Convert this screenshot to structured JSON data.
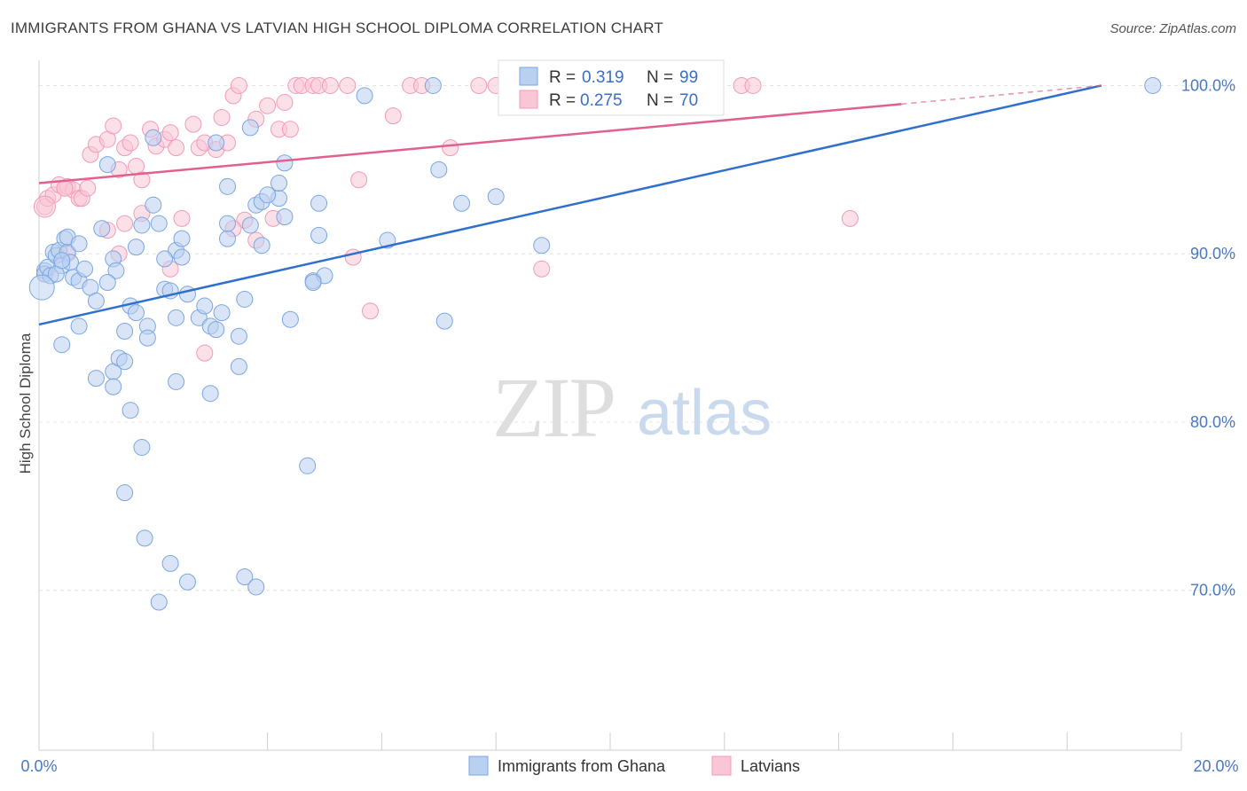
{
  "header": {
    "title": "IMMIGRANTS FROM GHANA VS LATVIAN HIGH SCHOOL DIPLOMA CORRELATION CHART",
    "source": "Source: ZipAtlas.com"
  },
  "watermark": {
    "part1": "ZIP",
    "part2": "atlas"
  },
  "legend": {
    "r_label": "R =",
    "n_label": "N =",
    "rows": [
      {
        "r": "0.319",
        "n": "99"
      },
      {
        "r": "0.275",
        "n": "70"
      }
    ]
  },
  "bottom_legend": {
    "items": [
      "Immigrants from Ghana",
      "Latvians"
    ]
  },
  "chart_data": {
    "type": "scatter",
    "title": "IMMIGRANTS FROM GHANA VS LATVIAN HIGH SCHOOL DIPLOMA CORRELATION CHART",
    "xlabel": "",
    "ylabel": "High School Diploma",
    "xlim": [
      0,
      20
    ],
    "ylim": [
      60.5,
      101.5
    ],
    "x_tick_labels": [
      "0.0%",
      "20.0%"
    ],
    "y_ticks": [
      70,
      80,
      90,
      100
    ],
    "y_tick_labels": [
      "70.0%",
      "80.0%",
      "90.0%",
      "100.0%"
    ],
    "grid": true,
    "legend_position": "top-center",
    "colors": {
      "ghana": "#7aa6e0",
      "latvians": "#f29ab8",
      "ghana_line": "#2f6fce",
      "latvians_line": "#e06090"
    },
    "series": [
      {
        "name": "Immigrants from Ghana",
        "trend": {
          "x": [
            0,
            18.6
          ],
          "y": [
            85.8,
            100.0
          ]
        },
        "points": [
          [
            0.1,
            89.0
          ],
          [
            0.1,
            88.8
          ],
          [
            0.15,
            89.2
          ],
          [
            0.2,
            88.7
          ],
          [
            0.25,
            90.1
          ],
          [
            0.3,
            89.9
          ],
          [
            0.35,
            90.2
          ],
          [
            0.4,
            89.3
          ],
          [
            0.45,
            90.9
          ],
          [
            0.5,
            90.1
          ],
          [
            0.55,
            89.5
          ],
          [
            0.6,
            88.6
          ],
          [
            0.7,
            88.4
          ],
          [
            0.8,
            89.1
          ],
          [
            0.9,
            88.0
          ],
          [
            1.0,
            87.2
          ],
          [
            0.3,
            88.8
          ],
          [
            0.4,
            89.6
          ],
          [
            0.5,
            91.0
          ],
          [
            0.7,
            90.6
          ],
          [
            1.1,
            91.5
          ],
          [
            1.3,
            89.7
          ],
          [
            1.35,
            89.0
          ],
          [
            1.2,
            88.3
          ],
          [
            0.7,
            85.7
          ],
          [
            0.4,
            84.6
          ],
          [
            1.0,
            82.6
          ],
          [
            1.3,
            83.0
          ],
          [
            1.4,
            83.8
          ],
          [
            1.5,
            83.6
          ],
          [
            1.3,
            82.1
          ],
          [
            1.6,
            80.7
          ],
          [
            1.8,
            78.5
          ],
          [
            1.5,
            75.8
          ],
          [
            1.85,
            73.1
          ],
          [
            2.3,
            71.6
          ],
          [
            2.6,
            70.5
          ],
          [
            2.1,
            69.3
          ],
          [
            3.6,
            70.8
          ],
          [
            3.8,
            70.2
          ],
          [
            1.6,
            86.9
          ],
          [
            1.7,
            86.5
          ],
          [
            1.5,
            85.4
          ],
          [
            1.9,
            85.7
          ],
          [
            1.9,
            85.0
          ],
          [
            2.2,
            87.9
          ],
          [
            2.3,
            87.8
          ],
          [
            2.4,
            86.2
          ],
          [
            2.6,
            87.6
          ],
          [
            2.8,
            86.2
          ],
          [
            2.9,
            86.9
          ],
          [
            3.0,
            85.7
          ],
          [
            3.1,
            85.5
          ],
          [
            3.2,
            86.5
          ],
          [
            3.5,
            85.1
          ],
          [
            3.5,
            83.3
          ],
          [
            3.6,
            87.3
          ],
          [
            2.4,
            82.4
          ],
          [
            3.0,
            81.7
          ],
          [
            1.8,
            91.7
          ],
          [
            2.0,
            92.9
          ],
          [
            2.1,
            91.8
          ],
          [
            2.4,
            90.2
          ],
          [
            2.5,
            89.8
          ],
          [
            2.5,
            90.9
          ],
          [
            3.3,
            90.9
          ],
          [
            3.3,
            91.8
          ],
          [
            3.8,
            92.9
          ],
          [
            3.9,
            93.1
          ],
          [
            4.2,
            93.3
          ],
          [
            4.3,
            92.2
          ],
          [
            3.7,
            91.7
          ],
          [
            3.9,
            90.5
          ],
          [
            4.2,
            94.2
          ],
          [
            4.3,
            95.4
          ],
          [
            3.3,
            94.0
          ],
          [
            3.1,
            96.6
          ],
          [
            2.0,
            96.9
          ],
          [
            1.2,
            95.3
          ],
          [
            3.7,
            97.5
          ],
          [
            4.9,
            93.0
          ],
          [
            4.9,
            91.1
          ],
          [
            4.8,
            88.4
          ],
          [
            5.0,
            88.7
          ],
          [
            4.4,
            86.1
          ],
          [
            4.7,
            77.4
          ],
          [
            6.1,
            90.8
          ],
          [
            7.1,
            86.0
          ],
          [
            7.4,
            93.0
          ],
          [
            8.0,
            93.4
          ],
          [
            8.8,
            90.5
          ],
          [
            7.0,
            95.0
          ],
          [
            5.7,
            99.4
          ],
          [
            6.9,
            100.0
          ],
          [
            19.5,
            100.0
          ],
          [
            4.0,
            93.5
          ],
          [
            2.2,
            89.7
          ],
          [
            1.7,
            90.4
          ],
          [
            4.8,
            88.3
          ]
        ]
      },
      {
        "name": "Latvians",
        "trend": {
          "x": [
            0,
            15.1
          ],
          "y": [
            94.2,
            98.9
          ]
        },
        "trend_dashed": {
          "x": [
            15.1,
            18.6
          ],
          "y": [
            98.9,
            100.0
          ]
        },
        "points": [
          [
            0.1,
            92.8
          ],
          [
            0.15,
            93.3
          ],
          [
            0.25,
            93.5
          ],
          [
            0.35,
            94.1
          ],
          [
            0.45,
            93.9
          ],
          [
            0.5,
            94.0
          ],
          [
            0.6,
            93.8
          ],
          [
            0.7,
            93.3
          ],
          [
            0.75,
            93.3
          ],
          [
            0.85,
            93.9
          ],
          [
            0.9,
            95.9
          ],
          [
            1.0,
            96.5
          ],
          [
            1.2,
            96.8
          ],
          [
            1.3,
            97.6
          ],
          [
            1.4,
            95.0
          ],
          [
            1.5,
            96.3
          ],
          [
            1.6,
            96.6
          ],
          [
            1.7,
            95.2
          ],
          [
            1.8,
            94.4
          ],
          [
            1.95,
            97.4
          ],
          [
            2.05,
            96.4
          ],
          [
            2.2,
            96.8
          ],
          [
            2.3,
            97.2
          ],
          [
            2.4,
            96.3
          ],
          [
            2.7,
            97.7
          ],
          [
            2.8,
            96.3
          ],
          [
            2.9,
            96.6
          ],
          [
            3.1,
            96.2
          ],
          [
            3.2,
            98.1
          ],
          [
            3.3,
            96.6
          ],
          [
            3.4,
            99.4
          ],
          [
            3.5,
            100.0
          ],
          [
            3.6,
            92.0
          ],
          [
            3.8,
            98.0
          ],
          [
            4.2,
            97.4
          ],
          [
            4.0,
            98.8
          ],
          [
            4.1,
            92.1
          ],
          [
            4.3,
            99.0
          ],
          [
            4.5,
            100.0
          ],
          [
            4.6,
            100.0
          ],
          [
            4.8,
            100.0
          ],
          [
            4.9,
            100.0
          ],
          [
            5.1,
            100.0
          ],
          [
            5.4,
            100.0
          ],
          [
            5.6,
            94.4
          ],
          [
            5.5,
            89.8
          ],
          [
            5.8,
            86.6
          ],
          [
            6.2,
            98.2
          ],
          [
            6.5,
            100.0
          ],
          [
            6.7,
            100.0
          ],
          [
            7.2,
            96.3
          ],
          [
            7.7,
            100.0
          ],
          [
            8.0,
            100.0
          ],
          [
            8.8,
            89.1
          ],
          [
            10.5,
            100.0
          ],
          [
            12.3,
            100.0
          ],
          [
            12.5,
            100.0
          ],
          [
            14.2,
            92.1
          ],
          [
            0.5,
            90.0
          ],
          [
            0.45,
            93.9
          ],
          [
            1.2,
            91.4
          ],
          [
            1.4,
            90.0
          ],
          [
            1.5,
            91.8
          ],
          [
            1.8,
            92.4
          ],
          [
            2.3,
            89.1
          ],
          [
            2.5,
            92.1
          ],
          [
            2.9,
            84.1
          ],
          [
            3.4,
            91.5
          ],
          [
            3.8,
            90.8
          ],
          [
            4.4,
            97.4
          ]
        ]
      }
    ]
  }
}
